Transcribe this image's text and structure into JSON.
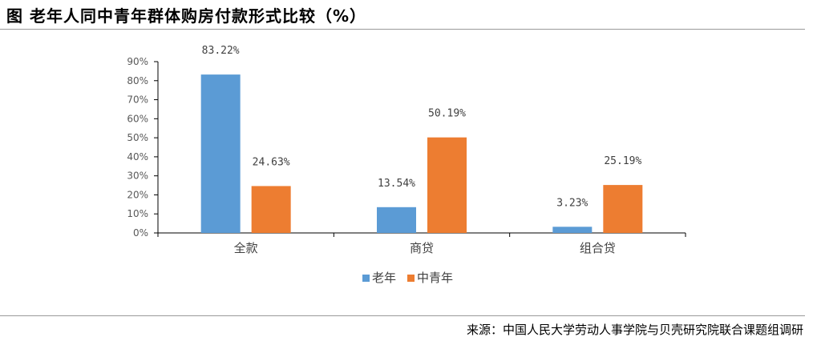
{
  "title": "图  老年人同中青年群体购房付款形式比较（%）",
  "source": "来源：中国人民大学劳动人事学院与贝壳研究院联合课题组调研",
  "chart_data": {
    "type": "bar",
    "categories": [
      "全款",
      "商贷",
      "组合贷"
    ],
    "series": [
      {
        "name": "老年",
        "color": "#5b9bd5",
        "values": [
          83.22,
          13.54,
          3.23
        ],
        "labels": [
          "83.22%",
          "13.54%",
          "3.23%"
        ]
      },
      {
        "name": "中青年",
        "color": "#ed7d31",
        "values": [
          24.63,
          50.19,
          25.19
        ],
        "labels": [
          "24.63%",
          "50.19%",
          "25.19%"
        ]
      }
    ],
    "ylim": [
      0,
      90
    ],
    "yticks": [
      "0%",
      "10%",
      "20%",
      "30%",
      "40%",
      "50%",
      "60%",
      "70%",
      "80%",
      "90%"
    ],
    "grid": false,
    "legend_position": "bottom"
  }
}
